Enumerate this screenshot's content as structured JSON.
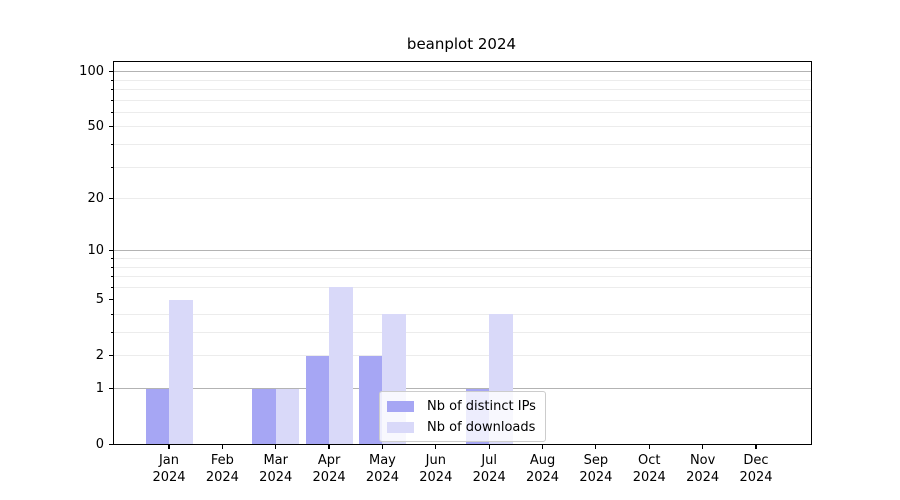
{
  "title": "beanplot 2024",
  "chart_data": {
    "type": "bar",
    "categories": [
      "Jan",
      "Feb",
      "Mar",
      "Apr",
      "May",
      "Jun",
      "Jul",
      "Aug",
      "Sep",
      "Oct",
      "Nov",
      "Dec"
    ],
    "year": "2024",
    "series": [
      {
        "name": "Nb of distinct IPs",
        "color": "#a6a6f4",
        "values": [
          1,
          0,
          1,
          2,
          2,
          0,
          1,
          0,
          0,
          0,
          0,
          0
        ]
      },
      {
        "name": "Nb of downloads",
        "color": "#d9d9f9",
        "values": [
          5,
          0,
          1,
          6,
          4,
          0,
          4,
          0,
          0,
          0,
          0,
          0
        ]
      }
    ],
    "title": "beanplot 2024",
    "xlabel": "",
    "ylabel": "",
    "yscale": "log1p",
    "ylim": [
      0,
      115
    ],
    "yticks": [
      0,
      1,
      2,
      5,
      10,
      20,
      50,
      100
    ],
    "grid_major": [
      1,
      10,
      100
    ],
    "grid_minor": [
      2,
      3,
      4,
      6,
      7,
      8,
      9,
      20,
      30,
      40,
      50,
      60,
      70,
      80,
      90
    ],
    "grid": "on",
    "legend_position": "lower center-left inside plot"
  },
  "legend": {
    "entries": [
      {
        "label": "Nb of distinct IPs",
        "color": "#a6a6f4"
      },
      {
        "label": "Nb of downloads",
        "color": "#d9d9f9"
      }
    ]
  },
  "colors": {
    "background": "#ffffff",
    "axis": "#000000",
    "grid_major": "#b3b3b3",
    "grid_minor": "#ececec",
    "legend_border": "#cccccc"
  }
}
